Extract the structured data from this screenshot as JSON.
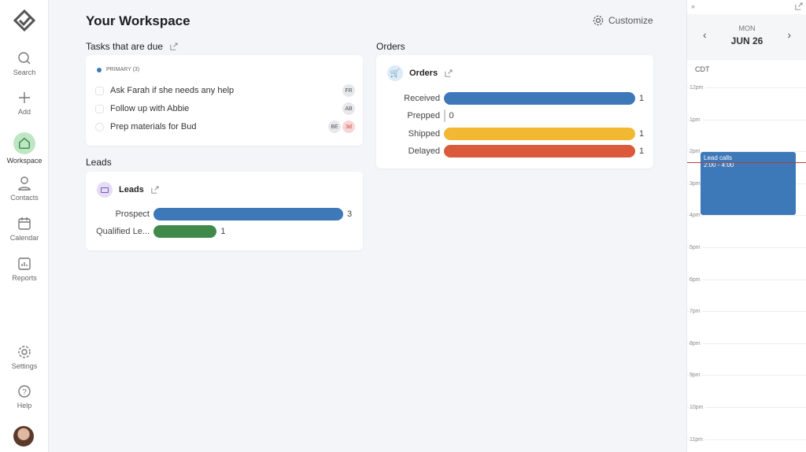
{
  "sidebar": {
    "items": [
      {
        "label": "Search",
        "icon": "search-icon"
      },
      {
        "label": "Add",
        "icon": "plus-icon"
      },
      {
        "label": "Workspace",
        "icon": "home-icon",
        "active": true
      },
      {
        "label": "Contacts",
        "icon": "person-icon"
      },
      {
        "label": "Calendar",
        "icon": "calendar-icon"
      },
      {
        "label": "Reports",
        "icon": "reports-icon"
      },
      {
        "label": "Settings",
        "icon": "gear-icon"
      },
      {
        "label": "Help",
        "icon": "help-icon"
      }
    ]
  },
  "header": {
    "title": "Your Workspace",
    "customize": "Customize"
  },
  "tasks": {
    "title": "Tasks that are due",
    "group": "PRIMARY (3)",
    "items": [
      {
        "text": "Ask Farah if she needs any help",
        "avatars": [
          "FR"
        ]
      },
      {
        "text": "Follow up with Abbie",
        "avatars": [
          "AB"
        ]
      },
      {
        "text": "Prep materials for Bud",
        "avatars": [
          "BE"
        ],
        "due": "3d"
      }
    ]
  },
  "leads": {
    "section": "Leads",
    "title": "Leads",
    "max": 3,
    "rows": [
      {
        "label": "Prospect",
        "value": 3,
        "color": "#3d78b8"
      },
      {
        "label": "Qualified Le...",
        "value": 1,
        "color": "#3f8a4a"
      }
    ]
  },
  "orders": {
    "section": "Orders",
    "title": "Orders",
    "max": 1,
    "rows": [
      {
        "label": "Received",
        "value": 1,
        "color": "#3d78b8"
      },
      {
        "label": "Prepped",
        "value": 0,
        "color": "#3d78b8"
      },
      {
        "label": "Shipped",
        "value": 1,
        "color": "#f2b831"
      },
      {
        "label": "Delayed",
        "value": 1,
        "color": "#dc5a3c"
      }
    ]
  },
  "calendar": {
    "day": "MON",
    "date": "JUN 26",
    "timezone": "CDT",
    "hours": [
      "12pm",
      "1pm",
      "2pm",
      "3pm",
      "4pm",
      "5pm",
      "6pm",
      "7pm",
      "8pm",
      "9pm",
      "10pm",
      "11pm"
    ],
    "event": {
      "title": "Lead calls",
      "time": "2:00 - 4:00",
      "color": "#3d78b8"
    }
  }
}
